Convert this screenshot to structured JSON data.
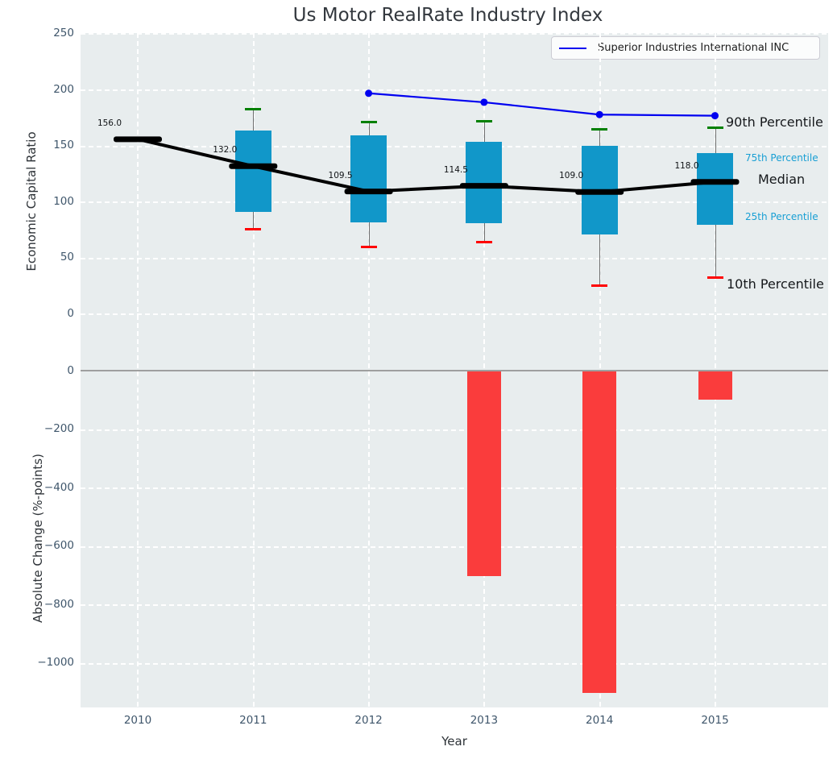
{
  "figure": {
    "title": "Us Motor RealRate Industry Index"
  },
  "legend": {
    "series_label": "Superior Industries International INC"
  },
  "axes": {
    "top": {
      "ylabel": "Economic Capital Ratio",
      "yticks": [
        250,
        200,
        150,
        100,
        50,
        0
      ],
      "ylim": [
        -35,
        251
      ],
      "grid": true
    },
    "bottom": {
      "ylabel": "Absolute Change (%-points)",
      "xlabel": "Year",
      "yticks": [
        0,
        -200,
        -400,
        -600,
        -800,
        -1000
      ],
      "ylim": [
        -1150,
        63
      ],
      "grid": true
    }
  },
  "percentile_labels": {
    "p90": "90th Percentile",
    "p75": "75th Percentile",
    "median": "Median",
    "p25": "25th Percentile",
    "p10": "10th Percentile"
  },
  "colors": {
    "plot_bg": "#e8edee",
    "grid": "#ffffff",
    "box_fill": "#1197c9",
    "bar_fill": "#fa3c3c",
    "company_line": "#0101f0",
    "median_line": "#000000",
    "whisker": "#6f6f6f",
    "cap_90th": "#008000",
    "cap_10th": "#ff0000",
    "zero_line": "#9f9f9f",
    "tick_text": "#3f566b",
    "percentile_label_blue": "#189fd4"
  },
  "chart_data": [
    {
      "type": "box",
      "title": "Us Motor RealRate Industry Index",
      "ylabel": "Economic Capital Ratio",
      "categories": [
        2010,
        2011,
        2012,
        2013,
        2014,
        2015
      ],
      "median": [
        156.0,
        132.0,
        109.5,
        114.5,
        109.0,
        118.0
      ],
      "median_labels": [
        "156.0",
        "132.0",
        "109.5",
        "114.5",
        "109.0",
        "118.0"
      ],
      "q1": [
        null,
        91,
        82,
        81,
        71,
        80
      ],
      "q3": [
        null,
        164,
        159.5,
        153.5,
        150,
        144
      ],
      "p10": [
        null,
        76,
        60,
        64.5,
        25.5,
        32.5
      ],
      "p90": [
        null,
        183,
        171,
        172,
        165,
        166
      ],
      "series": [
        {
          "name": "Superior Industries International INC",
          "x": [
            2012,
            2013,
            2014,
            2015
          ],
          "y": [
            197,
            189,
            178,
            177
          ]
        }
      ],
      "ylim": [
        -35,
        251
      ],
      "grid": true,
      "legend_position": "upper right"
    },
    {
      "type": "bar",
      "ylabel": "Absolute Change (%-points)",
      "xlabel": "Year",
      "categories": [
        2010,
        2011,
        2012,
        2013,
        2014,
        2015
      ],
      "values": [
        null,
        null,
        null,
        -700,
        -1100,
        -97
      ],
      "ylim": [
        -1150,
        63
      ],
      "grid": true
    }
  ]
}
